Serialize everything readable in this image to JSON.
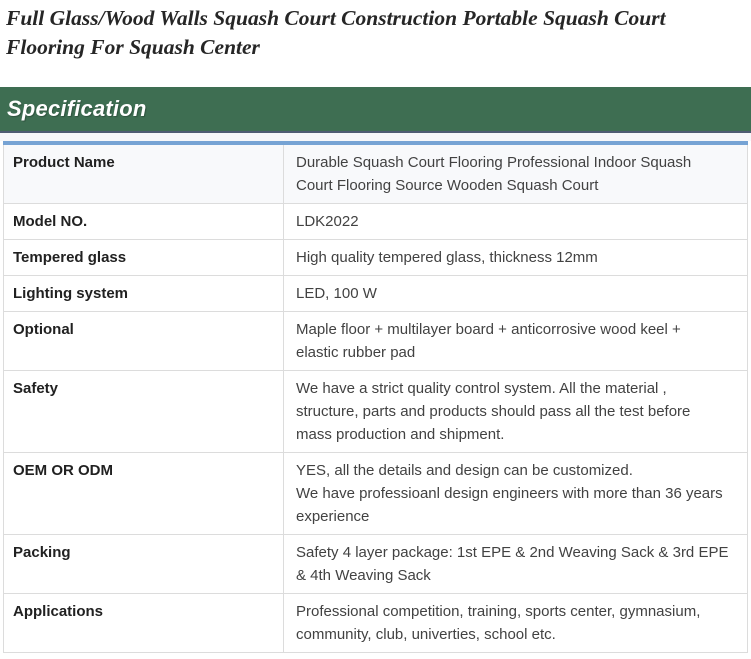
{
  "page_title": "Full Glass/Wood Walls Squash Court Construction Portable Squash Court\nFlooring For Squash Center",
  "specification": {
    "header_label": "Specification",
    "rows": [
      {
        "label": "Product Name",
        "value": "Durable Squash Court Flooring Professional Indoor Squash\nCourt Flooring Source Wooden Squash Court"
      },
      {
        "label": "Model NO.",
        "value": "LDK2022"
      },
      {
        "label": "Tempered glass",
        "value": "High quality tempered glass, thickness 12mm"
      },
      {
        "label": "Lighting system",
        "value": "LED, 100 W"
      },
      {
        "label": "Optional",
        "value": "Maple floor + multilayer board + anticorrosive wood keel +\nelastic rubber pad"
      },
      {
        "label": "Safety",
        "value": "We have a strict quality control system. All the material ,\nstructure, parts and products should pass all the test before\nmass production and shipment."
      },
      {
        "label": "OEM OR ODM",
        "value": "YES, all the details and design can be customized.\nWe have professioanl design engineers with more than 36 years\nexperience"
      },
      {
        "label": "Packing",
        "value": "Safety 4 layer package: 1st EPE & 2nd Weaving Sack & 3rd EPE\n& 4th Weaving Sack"
      },
      {
        "label": "Applications",
        "value": "Professional competition, training, sports center, gymnasium,\ncommunity, club, univerties, school etc."
      }
    ]
  },
  "colors": {
    "section_header_bg": "#3e6e52",
    "section_header_underline": "#4e5c72",
    "table_top_accent": "#76a3d4"
  }
}
